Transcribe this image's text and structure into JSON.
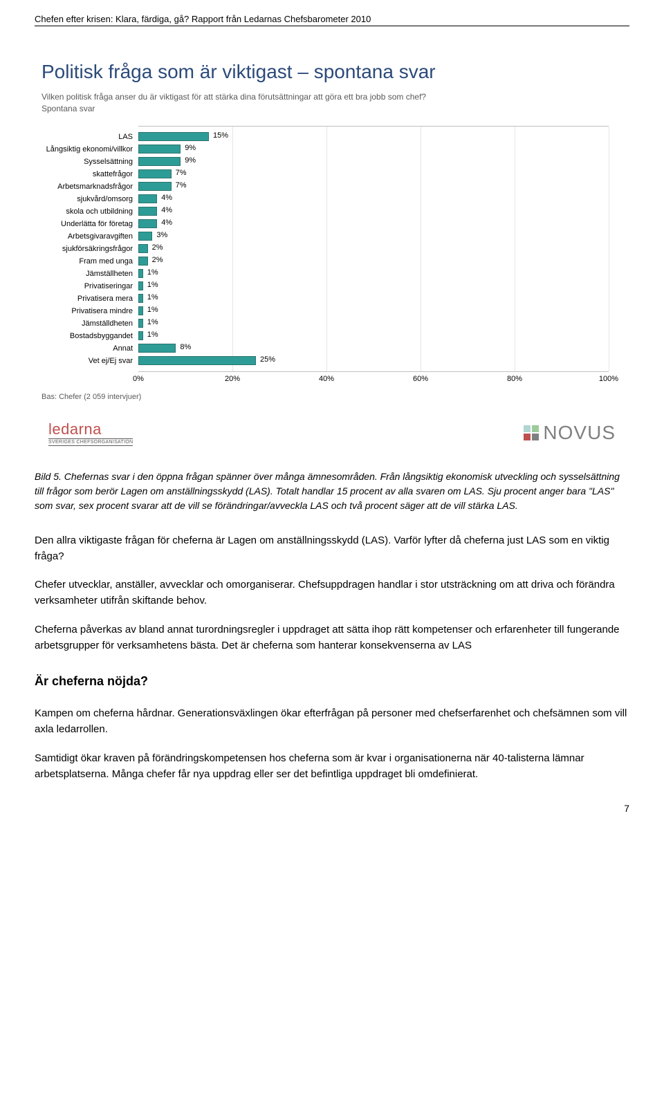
{
  "header": {
    "text": "Chefen efter krisen: Klara, färdiga, gå? Rapport från Ledarnas Chefsbarometer 2010"
  },
  "chart": {
    "type": "bar",
    "title": "Politisk fråga som är viktigast – spontana svar",
    "subtitle_line1": "Vilken politisk fråga anser du är viktigast för att stärka dina förutsättningar att göra ett bra jobb som chef?",
    "subtitle_line2": "Spontana svar",
    "bar_color": "#2e9c96",
    "bar_border_color": "#2a746e",
    "axis_color": "#bfbfbf",
    "text_color": "#000000",
    "label_fontsize": 11,
    "xlim": [
      0,
      100
    ],
    "xtick_step": 20,
    "xticks": [
      "0%",
      "20%",
      "40%",
      "60%",
      "80%",
      "100%"
    ],
    "categories": [
      {
        "label": "LAS",
        "value": 15
      },
      {
        "label": "Långsiktig ekonomi/villkor",
        "value": 9
      },
      {
        "label": "Sysselsättning",
        "value": 9
      },
      {
        "label": "skattefrågor",
        "value": 7
      },
      {
        "label": "Arbetsmarknadsfrågor",
        "value": 7
      },
      {
        "label": "sjukvård/omsorg",
        "value": 4
      },
      {
        "label": "skola och utbildning",
        "value": 4
      },
      {
        "label": "Underlätta för företag",
        "value": 4
      },
      {
        "label": "Arbetsgivaravgiften",
        "value": 3
      },
      {
        "label": "sjukförsäkringsfrågor",
        "value": 2
      },
      {
        "label": "Fram med unga",
        "value": 2
      },
      {
        "label": "Jämställheten",
        "value": 1
      },
      {
        "label": "Privatiseringar",
        "value": 1
      },
      {
        "label": "Privatisera mera",
        "value": 1
      },
      {
        "label": "Privatisera mindre",
        "value": 1
      },
      {
        "label": "Jämställdheten",
        "value": 1
      },
      {
        "label": "Bostadsbyggandet",
        "value": 1
      },
      {
        "label": "Annat",
        "value": 8
      },
      {
        "label": "Vet ej/Ej svar",
        "value": 25
      }
    ],
    "base_text": "Bas: Chefer (2 059 intervjuer)"
  },
  "logos": {
    "ledarna_main": "ledarna",
    "ledarna_sub": "SVERIGES CHEFSORGANISATION",
    "ledarna_color": "#c0504d",
    "novus_text": "NOVUS",
    "novus_colors": [
      "#b0d5d2",
      "#9dcb9a",
      "#c0504d",
      "#808080"
    ]
  },
  "caption": {
    "text": "Bild 5. Chefernas svar i den öppna frågan spänner över många ämnesområden. Från långsiktig ekonomisk utveckling och sysselsättning till frågor som berör Lagen om anställningsskydd (LAS). Totalt handlar 15 procent av alla svaren om LAS. Sju procent anger bara \"LAS\" som svar, sex procent svarar att de vill se förändringar/avveckla LAS och två procent säger att de vill stärka LAS."
  },
  "body": {
    "p1": "Den allra viktigaste frågan för cheferna är Lagen om anställningsskydd (LAS).  Varför lyfter då cheferna just LAS som en viktig fråga?",
    "p2": "Chefer utvecklar, anställer, avvecklar och omorganiserar. Chefsuppdragen handlar i stor utsträckning om att driva och förändra verksamheter utifrån skiftande behov.",
    "p3": "Cheferna påverkas av bland annat turordningsregler i uppdraget att sätta ihop rätt kompetenser och erfarenheter till fungerande arbetsgrupper för verksamhetens bästa. Det är cheferna som hanterar konsekvenserna av LAS"
  },
  "heading2": "Är cheferna nöjda?",
  "body2": {
    "p1": "Kampen om cheferna hårdnar. Generationsväxlingen ökar efterfrågan på personer med chefserfarenhet och chefsämnen som vill axla ledarrollen.",
    "p2": "Samtidigt ökar kraven på förändringskompetensen hos cheferna som är kvar i organisationerna när 40-talisterna lämnar arbetsplatserna. Många chefer får nya uppdrag eller ser det befintliga uppdraget bli omdefinierat."
  },
  "page_number": "7"
}
